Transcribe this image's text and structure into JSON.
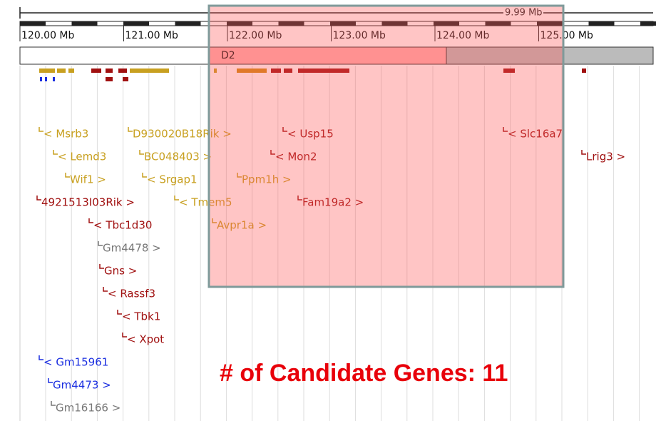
{
  "scale_label": "9.99 Mb",
  "ruler": [
    "120.00 Mb",
    "121.00 Mb",
    "122.00 Mb",
    "123.00 Mb",
    "124.00 Mb",
    "125.00 Mb"
  ],
  "band": "D2",
  "genes": [
    {
      "label": "< Msrb3",
      "color": "#c8a020"
    },
    {
      "label": "D930020B18Rik >",
      "color": "#c8a020"
    },
    {
      "label": "< Usp15",
      "color": "#a01010"
    },
    {
      "label": "< Slc16a7",
      "color": "#a01010"
    },
    {
      "label": "< Lemd3",
      "color": "#c8a020"
    },
    {
      "label": "BC048403 >",
      "color": "#c8a020"
    },
    {
      "label": "< Mon2",
      "color": "#a01010"
    },
    {
      "label": "Lrig3 >",
      "color": "#a01010"
    },
    {
      "label": "Wif1 >",
      "color": "#c8a020"
    },
    {
      "label": "< Srgap1",
      "color": "#c8a020"
    },
    {
      "label": "Ppm1h >",
      "color": "#c8a020"
    },
    {
      "label": "4921513I03Rik >",
      "color": "#a01010"
    },
    {
      "label": "< Tmem5",
      "color": "#c8a020"
    },
    {
      "label": "Fam19a2 >",
      "color": "#a01010"
    },
    {
      "label": "< Tbc1d30",
      "color": "#a01010"
    },
    {
      "label": "Avpr1a >",
      "color": "#c8a020"
    },
    {
      "label": "Gm4478 >",
      "color": "#777777"
    },
    {
      "label": "Gns >",
      "color": "#a01010"
    },
    {
      "label": "< Rassf3",
      "color": "#a01010"
    },
    {
      "label": "< Tbk1",
      "color": "#a01010"
    },
    {
      "label": "< Xpot",
      "color": "#a01010"
    },
    {
      "label": "< Gm15961",
      "color": "#1a2ee0"
    },
    {
      "label": "Gm4473 >",
      "color": "#1a2ee0"
    },
    {
      "label": "Gm16166 >",
      "color": "#777777"
    }
  ],
  "annotation": "# of Candidate Genes:  11"
}
